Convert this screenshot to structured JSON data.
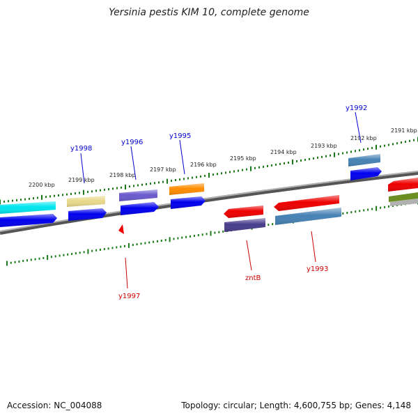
{
  "title": "Yersinia pestis KIM 10, complete genome",
  "footer": {
    "accession": "Accession: NC_004088",
    "summary": "Topology: circular; Length: 4,600,755 bp; Genes: 4,148"
  },
  "colors": {
    "backbone": "#808080",
    "ruler": "#1a7a1a",
    "label_top": "#0000cc",
    "label_bottom": "#cc0000"
  },
  "ruler_labels": [
    "2200 kbp",
    "2199 kbp",
    "2198 kbp",
    "2197 kbp",
    "2196 kbp",
    "2195 kbp",
    "2194 kbp",
    "2193 kbp",
    "2192 kbp",
    "2191 kbp"
  ],
  "gene_labels": {
    "top": [
      "y1998",
      "y1996",
      "y1995",
      "y1992"
    ],
    "bottom": [
      "y1997",
      "zntB",
      "y1993"
    ]
  },
  "features": [
    {
      "name": "feature-cyan",
      "color": "#00e5ee"
    },
    {
      "name": "feature-khaki",
      "color": "#e8d98a"
    },
    {
      "name": "feature-slateblue",
      "color": "#6a5acd"
    },
    {
      "name": "feature-orange",
      "color": "#ff8c00"
    },
    {
      "name": "feature-steelblue-top",
      "color": "#4682b4"
    },
    {
      "name": "feature-red-right",
      "color": "#ee0000"
    },
    {
      "name": "feature-olive",
      "color": "#6b8e23"
    },
    {
      "name": "feature-grey",
      "color": "#b0b0b0"
    },
    {
      "name": "feature-red-a",
      "color": "#ee0000"
    },
    {
      "name": "feature-red-b",
      "color": "#ee0000"
    },
    {
      "name": "feature-darkslateblue",
      "color": "#483d8b"
    },
    {
      "name": "feature-steelblue-bottom",
      "color": "#4682b4"
    },
    {
      "name": "feature-red-small",
      "color": "#ee0000"
    },
    {
      "name": "cds-blue",
      "color": "#0000ee"
    }
  ]
}
